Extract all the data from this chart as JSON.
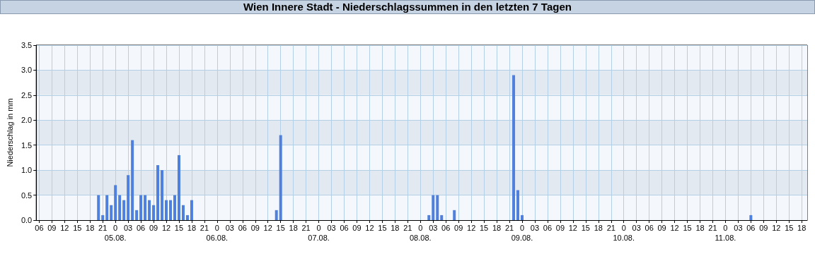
{
  "chart_data": {
    "type": "bar",
    "title": "Wien Innere Stadt - Niederschlagssummen in den letzten 7 Tagen",
    "ylabel": "Niederschlag in mm",
    "color": "#5080dd",
    "grid": true,
    "x": [
      "--08-04T20:00",
      "--08-04T21:00",
      "--08-04T22:00",
      "--08-04T23:00",
      "--08-05T00:00",
      "--08-05T01:00",
      "--08-05T02:00",
      "--08-05T03:00",
      "--08-05T04:00",
      "--08-05T05:00",
      "--08-05T06:00",
      "--08-05T07:00",
      "--08-05T08:00",
      "--08-05T09:00",
      "--08-05T10:00",
      "--08-05T11:00",
      "--08-05T12:00",
      "--08-05T13:00",
      "--08-05T14:00",
      "--08-05T15:00",
      "--08-05T16:00",
      "--08-05T17:00",
      "--08-05T18:00",
      "--08-06T14:00",
      "--08-06T15:00",
      "--08-08T02:00",
      "--08-08T03:00",
      "--08-08T04:00",
      "--08-08T05:00",
      "--08-08T08:00",
      "--08-08T22:00",
      "--08-08T23:00",
      "--08-09T00:00",
      "--08-11T06:00"
    ],
    "values": [
      0.5,
      0.1,
      0.5,
      0.3,
      0.7,
      0.5,
      0.4,
      0.9,
      1.6,
      0.2,
      0.5,
      0.5,
      0.4,
      0.3,
      1.1,
      1.0,
      0.4,
      0.4,
      0.5,
      1.3,
      0.3,
      0.1,
      0.4,
      0.2,
      1.7,
      0.1,
      0.5,
      0.5,
      0.1,
      0.2,
      2.9,
      0.6,
      0.1,
      0.1
    ],
    "xlim": [
      "--08-04T05:18",
      "--08-11T19:18"
    ],
    "xticks": [
      {
        "value": "--08-04T06:00",
        "label": "06"
      },
      {
        "value": "--08-04T09:00",
        "label": "09"
      },
      {
        "value": "--08-04T12:00",
        "label": "12"
      },
      {
        "value": "--08-04T15:00",
        "label": "15"
      },
      {
        "value": "--08-04T18:00",
        "label": "18"
      },
      {
        "value": "--08-04T21:00",
        "label": "21"
      },
      {
        "value": "--08-05T00:00",
        "label": "0\n05.08."
      },
      {
        "value": "--08-05T03:00",
        "label": "03"
      },
      {
        "value": "--08-05T06:00",
        "label": "06"
      },
      {
        "value": "--08-05T09:00",
        "label": "09"
      },
      {
        "value": "--08-05T12:00",
        "label": "12"
      },
      {
        "value": "--08-05T15:00",
        "label": "15"
      },
      {
        "value": "--08-05T18:00",
        "label": "18"
      },
      {
        "value": "--08-05T21:00",
        "label": "21"
      },
      {
        "value": "--08-06T00:00",
        "label": "0\n06.08."
      },
      {
        "value": "--08-06T03:00",
        "label": "03"
      },
      {
        "value": "--08-06T06:00",
        "label": "06"
      },
      {
        "value": "--08-06T09:00",
        "label": "09"
      },
      {
        "value": "--08-06T12:00",
        "label": "12"
      },
      {
        "value": "--08-06T15:00",
        "label": "15"
      },
      {
        "value": "--08-06T18:00",
        "label": "18"
      },
      {
        "value": "--08-06T21:00",
        "label": "21"
      },
      {
        "value": "--08-07T00:00",
        "label": "0\n07.08."
      },
      {
        "value": "--08-07T03:00",
        "label": "03"
      },
      {
        "value": "--08-07T06:00",
        "label": "06"
      },
      {
        "value": "--08-07T09:00",
        "label": "09"
      },
      {
        "value": "--08-07T12:00",
        "label": "12"
      },
      {
        "value": "--08-07T15:00",
        "label": "15"
      },
      {
        "value": "--08-07T18:00",
        "label": "18"
      },
      {
        "value": "--08-07T21:00",
        "label": "21"
      },
      {
        "value": "--08-08T00:00",
        "label": "0\n08.08."
      },
      {
        "value": "--08-08T03:00",
        "label": "03"
      },
      {
        "value": "--08-08T06:00",
        "label": "06"
      },
      {
        "value": "--08-08T09:00",
        "label": "09"
      },
      {
        "value": "--08-08T12:00",
        "label": "12"
      },
      {
        "value": "--08-08T15:00",
        "label": "15"
      },
      {
        "value": "--08-08T18:00",
        "label": "18"
      },
      {
        "value": "--08-08T21:00",
        "label": "21"
      },
      {
        "value": "--08-09T00:00",
        "label": "0\n09.08."
      },
      {
        "value": "--08-09T03:00",
        "label": "03"
      },
      {
        "value": "--08-09T06:00",
        "label": "06"
      },
      {
        "value": "--08-09T09:00",
        "label": "09"
      },
      {
        "value": "--08-09T12:00",
        "label": "12"
      },
      {
        "value": "--08-09T15:00",
        "label": "15"
      },
      {
        "value": "--08-09T18:00",
        "label": "18"
      },
      {
        "value": "--08-09T21:00",
        "label": "21"
      },
      {
        "value": "--08-10T00:00",
        "label": "0\n10.08."
      },
      {
        "value": "--08-10T03:00",
        "label": "03"
      },
      {
        "value": "--08-10T06:00",
        "label": "06"
      },
      {
        "value": "--08-10T09:00",
        "label": "09"
      },
      {
        "value": "--08-10T12:00",
        "label": "12"
      },
      {
        "value": "--08-10T15:00",
        "label": "15"
      },
      {
        "value": "--08-10T18:00",
        "label": "18"
      },
      {
        "value": "--08-10T21:00",
        "label": "21"
      },
      {
        "value": "--08-11T00:00",
        "label": "0\n11.08."
      },
      {
        "value": "--08-11T03:00",
        "label": "03"
      },
      {
        "value": "--08-11T06:00",
        "label": "06"
      },
      {
        "value": "--08-11T09:00",
        "label": "09"
      },
      {
        "value": "--08-11T12:00",
        "label": "12"
      },
      {
        "value": "--08-11T15:00",
        "label": "15"
      },
      {
        "value": "--08-11T18:00",
        "label": "18"
      }
    ],
    "ylim": [
      0,
      3.5
    ],
    "yticks": [
      {
        "value": 0,
        "label": "0.0"
      },
      {
        "value": 0.5,
        "label": "0.5"
      },
      {
        "value": 1,
        "label": "1.0"
      },
      {
        "value": 1.5,
        "label": "1.5"
      },
      {
        "value": 2,
        "label": "2.0"
      },
      {
        "value": 2.5,
        "label": "2.5"
      },
      {
        "value": 3,
        "label": "3.0"
      },
      {
        "value": 3.5,
        "label": "3.5"
      }
    ]
  }
}
